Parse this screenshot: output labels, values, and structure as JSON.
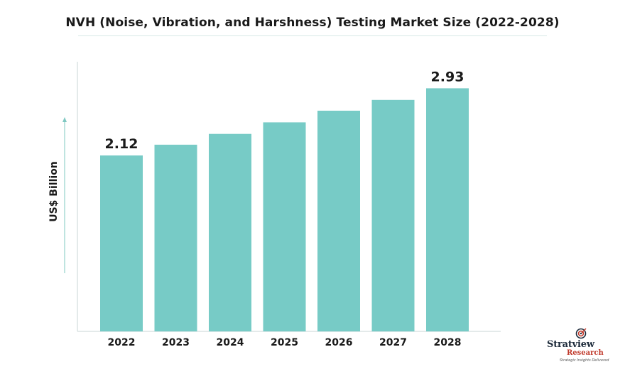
{
  "chart_data": {
    "type": "bar",
    "title": "NVH (Noise, Vibration, and Harshness) Testing Market Size (2022-2028)",
    "xlabel": "",
    "ylabel": "US$ Billion",
    "categories": [
      "2022",
      "2023",
      "2024",
      "2025",
      "2026",
      "2027",
      "2028"
    ],
    "values": [
      2.12,
      2.25,
      2.38,
      2.52,
      2.66,
      2.79,
      2.93
    ],
    "data_labels": {
      "2022": "2.12",
      "2028": "2.93"
    },
    "ylim": [
      0,
      3.25
    ],
    "grid": false,
    "legend": "none",
    "bar_color": "#77cbc6"
  },
  "branding": {
    "name": "Stratview",
    "sub": "Research",
    "tagline": "Strategic Insights Delivered"
  },
  "colors": {
    "axis": "#c9d6d4",
    "text": "#1a1a1a",
    "arrow": "#7fc8c2"
  }
}
